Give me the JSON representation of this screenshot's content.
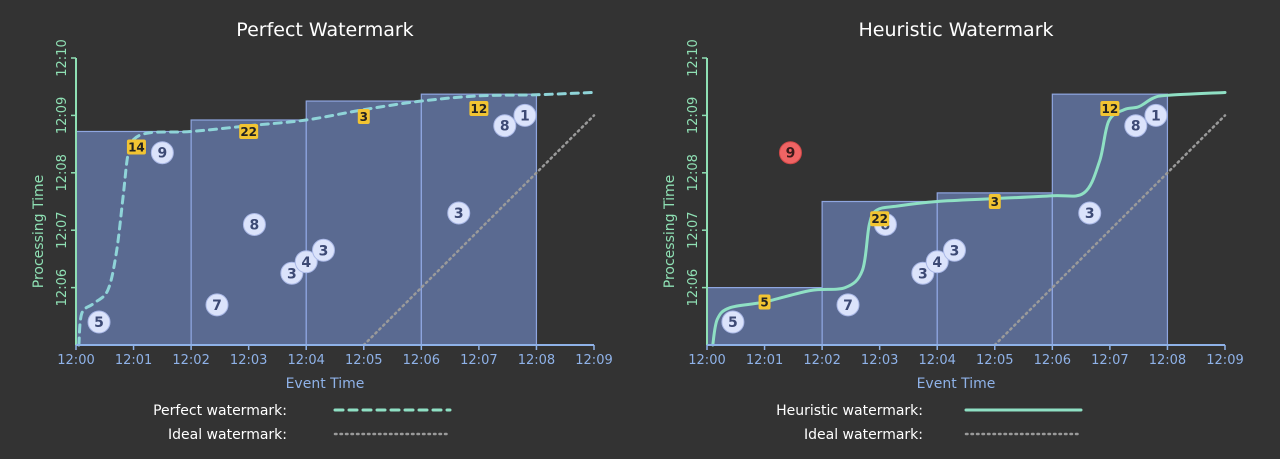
{
  "charts": [
    {
      "title": "Perfect Watermark",
      "xlabel": "Event Time",
      "ylabel": "Processing Time",
      "x_ticks": [
        "12:00",
        "12:01",
        "12:02",
        "12:03",
        "12:04",
        "12:05",
        "12:06",
        "12:07",
        "12:08",
        "12:09"
      ],
      "y_ticks": [
        "12:06",
        "12:07",
        "12:08",
        "12:09",
        "12:10"
      ],
      "legend": [
        {
          "label": "Perfect watermark:",
          "style": "dashed",
          "color": "#8fe0c4"
        },
        {
          "label": "Ideal watermark:",
          "style": "dotted",
          "color": "#9a9a9a"
        }
      ],
      "watermark_style": "dashed",
      "panes": [
        {
          "start": 0,
          "end": 2,
          "top": 8.72
        },
        {
          "start": 2,
          "end": 4,
          "top": 8.92
        },
        {
          "start": 4,
          "end": 6,
          "top": 9.25
        },
        {
          "start": 6,
          "end": 8,
          "top": 9.37
        }
      ],
      "watermark": [
        [
          0.05,
          5.0
        ],
        [
          0.1,
          5.55
        ],
        [
          0.3,
          5.72
        ],
        [
          0.55,
          5.95
        ],
        [
          0.7,
          6.6
        ],
        [
          0.82,
          7.6
        ],
        [
          0.9,
          8.3
        ],
        [
          1.0,
          8.58
        ],
        [
          1.3,
          8.7
        ],
        [
          2.0,
          8.72
        ],
        [
          3.0,
          8.82
        ],
        [
          4.0,
          8.92
        ],
        [
          5.0,
          9.1
        ],
        [
          6.0,
          9.25
        ],
        [
          7.0,
          9.34
        ],
        [
          8.0,
          9.36
        ],
        [
          9.0,
          9.4
        ]
      ],
      "ideal": [
        [
          5.0,
          5.0
        ],
        [
          9.0,
          9.0
        ]
      ],
      "events": [
        {
          "label": "5",
          "x": 0.4,
          "y": 5.4,
          "kind": "circle"
        },
        {
          "label": "7",
          "x": 2.45,
          "y": 5.7,
          "kind": "circle"
        },
        {
          "label": "8",
          "x": 3.1,
          "y": 7.1,
          "kind": "circle"
        },
        {
          "label": "3",
          "x": 3.75,
          "y": 6.25,
          "kind": "circle"
        },
        {
          "label": "4",
          "x": 4.0,
          "y": 6.45,
          "kind": "circle"
        },
        {
          "label": "3",
          "x": 4.3,
          "y": 6.65,
          "kind": "circle"
        },
        {
          "label": "9",
          "x": 1.5,
          "y": 8.35,
          "kind": "circle"
        },
        {
          "label": "3",
          "x": 6.65,
          "y": 7.3,
          "kind": "circle"
        },
        {
          "label": "8",
          "x": 7.45,
          "y": 8.82,
          "kind": "circle"
        },
        {
          "label": "1",
          "x": 7.8,
          "y": 9.0,
          "kind": "circle"
        },
        {
          "label": "14",
          "x": 1.05,
          "y": 8.45,
          "kind": "box"
        },
        {
          "label": "22",
          "x": 3.0,
          "y": 8.72,
          "kind": "box"
        },
        {
          "label": "3",
          "x": 5.0,
          "y": 8.98,
          "kind": "box"
        },
        {
          "label": "12",
          "x": 7.0,
          "y": 9.12,
          "kind": "box"
        }
      ]
    },
    {
      "title": "Heuristic Watermark",
      "xlabel": "Event Time",
      "ylabel": "Processing Time",
      "x_ticks": [
        "12:00",
        "12:01",
        "12:02",
        "12:03",
        "12:04",
        "12:05",
        "12:06",
        "12:07",
        "12:08",
        "12:09"
      ],
      "y_ticks": [
        "12:06",
        "12:07",
        "12:08",
        "12:09",
        "12:10"
      ],
      "legend": [
        {
          "label": "Heuristic watermark:",
          "style": "solid",
          "color": "#8fe0c4"
        },
        {
          "label": "Ideal watermark:",
          "style": "dotted",
          "color": "#9a9a9a"
        }
      ],
      "watermark_style": "solid",
      "panes": [
        {
          "start": 0,
          "end": 2,
          "top": 6.0
        },
        {
          "start": 2,
          "end": 4,
          "top": 7.5
        },
        {
          "start": 4,
          "end": 6,
          "top": 7.65
        },
        {
          "start": 6,
          "end": 8,
          "top": 9.37
        }
      ],
      "watermark": [
        [
          0.1,
          5.0
        ],
        [
          0.18,
          5.45
        ],
        [
          0.4,
          5.65
        ],
        [
          1.0,
          5.75
        ],
        [
          1.8,
          5.95
        ],
        [
          2.4,
          6.0
        ],
        [
          2.7,
          6.3
        ],
        [
          2.82,
          7.1
        ],
        [
          2.95,
          7.35
        ],
        [
          3.3,
          7.42
        ],
        [
          4.0,
          7.5
        ],
        [
          5.0,
          7.55
        ],
        [
          6.0,
          7.6
        ],
        [
          6.55,
          7.65
        ],
        [
          6.82,
          8.2
        ],
        [
          6.98,
          8.9
        ],
        [
          7.25,
          9.1
        ],
        [
          7.5,
          9.15
        ],
        [
          7.75,
          9.3
        ],
        [
          8.0,
          9.35
        ],
        [
          9.0,
          9.4
        ]
      ],
      "ideal": [
        [
          5.0,
          5.0
        ],
        [
          9.0,
          9.0
        ]
      ],
      "events": [
        {
          "label": "5",
          "x": 0.45,
          "y": 5.4,
          "kind": "circle"
        },
        {
          "label": "7",
          "x": 2.45,
          "y": 5.7,
          "kind": "circle"
        },
        {
          "label": "8",
          "x": 3.1,
          "y": 7.1,
          "kind": "circle"
        },
        {
          "label": "3",
          "x": 3.75,
          "y": 6.25,
          "kind": "circle"
        },
        {
          "label": "4",
          "x": 4.0,
          "y": 6.45,
          "kind": "circle"
        },
        {
          "label": "3",
          "x": 4.3,
          "y": 6.65,
          "kind": "circle"
        },
        {
          "label": "9",
          "x": 1.45,
          "y": 8.35,
          "kind": "circle",
          "late": true
        },
        {
          "label": "3",
          "x": 6.65,
          "y": 7.3,
          "kind": "circle"
        },
        {
          "label": "8",
          "x": 7.45,
          "y": 8.82,
          "kind": "circle"
        },
        {
          "label": "1",
          "x": 7.8,
          "y": 9.0,
          "kind": "circle"
        },
        {
          "label": "5",
          "x": 1.0,
          "y": 5.75,
          "kind": "box"
        },
        {
          "label": "22",
          "x": 3.0,
          "y": 7.2,
          "kind": "box"
        },
        {
          "label": "3",
          "x": 5.0,
          "y": 7.5,
          "kind": "box"
        },
        {
          "label": "12",
          "x": 7.0,
          "y": 9.12,
          "kind": "box"
        }
      ]
    }
  ],
  "colors": {
    "pane_fill": "#6a7fb6",
    "pane_stroke": "#8fa6e0",
    "axis_x": "#8fb2e8",
    "axis_y": "#8fe0b4",
    "watermark": "#8fe0c4",
    "perfect_watermark": "#8fd4d8",
    "ideal": "#9a9a9a",
    "circle_fill": "#dbe3fb",
    "circle_text": "#3d4a75",
    "late_fill": "#ef6464",
    "box_fill": "#f2c432"
  }
}
